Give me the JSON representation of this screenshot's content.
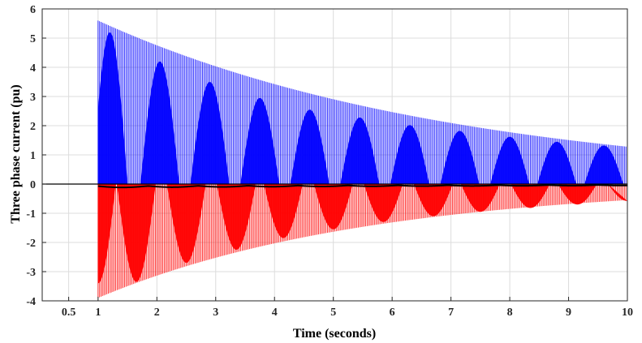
{
  "chart_data": {
    "type": "line",
    "xlabel": "Time (seconds)",
    "ylabel": "Three phase current (pu)",
    "xlim": [
      0.05,
      10
    ],
    "ylim": [
      -4,
      6
    ],
    "xticks": [
      0.5,
      1,
      2,
      3,
      4,
      5,
      6,
      7,
      8,
      9,
      10
    ],
    "xtick_labels": [
      "0.5",
      "1",
      "2",
      "3",
      "4",
      "5",
      "6",
      "7",
      "8",
      "9",
      "10"
    ],
    "yticks": [
      -4,
      -3,
      -2,
      -1,
      0,
      1,
      2,
      3,
      4,
      5,
      6
    ],
    "ytick_labels": [
      "-4",
      "-3",
      "-2",
      "-1",
      "0",
      "1",
      "2",
      "3",
      "4",
      "5",
      "6"
    ],
    "grid": true,
    "fault_time": 1,
    "series": [
      {
        "color": "#0000ff",
        "envelope_start": 5.6,
        "envelope_end": 1.28,
        "lobe_peaks": [
          {
            "x": 1.2,
            "y": 5.2
          },
          {
            "x": 2.05,
            "y": 4.2
          },
          {
            "x": 2.9,
            "y": 3.5
          },
          {
            "x": 3.75,
            "y": 2.95
          },
          {
            "x": 4.6,
            "y": 2.55
          },
          {
            "x": 5.45,
            "y": 2.28
          },
          {
            "x": 6.3,
            "y": 2.02
          },
          {
            "x": 7.15,
            "y": 1.82
          },
          {
            "x": 8.0,
            "y": 1.62
          },
          {
            "x": 8.8,
            "y": 1.45
          },
          {
            "x": 9.6,
            "y": 1.32
          }
        ]
      },
      {
        "color": "#ff0000",
        "envelope_start": -3.9,
        "envelope_end": -0.55,
        "lobe_peaks": [
          {
            "x": 1.0,
            "y": -3.4
          },
          {
            "x": 1.65,
            "y": -3.35
          },
          {
            "x": 2.5,
            "y": -2.7
          },
          {
            "x": 3.35,
            "y": -2.25
          },
          {
            "x": 4.15,
            "y": -1.85
          },
          {
            "x": 5.0,
            "y": -1.55
          },
          {
            "x": 5.85,
            "y": -1.3
          },
          {
            "x": 6.7,
            "y": -1.1
          },
          {
            "x": 7.5,
            "y": -0.95
          },
          {
            "x": 8.35,
            "y": -0.82
          },
          {
            "x": 9.15,
            "y": -0.7
          },
          {
            "x": 10.0,
            "y": -0.58
          }
        ]
      },
      {
        "color": "#000000",
        "amplitude_start": 0.12,
        "amplitude_end": 0.05
      }
    ]
  }
}
